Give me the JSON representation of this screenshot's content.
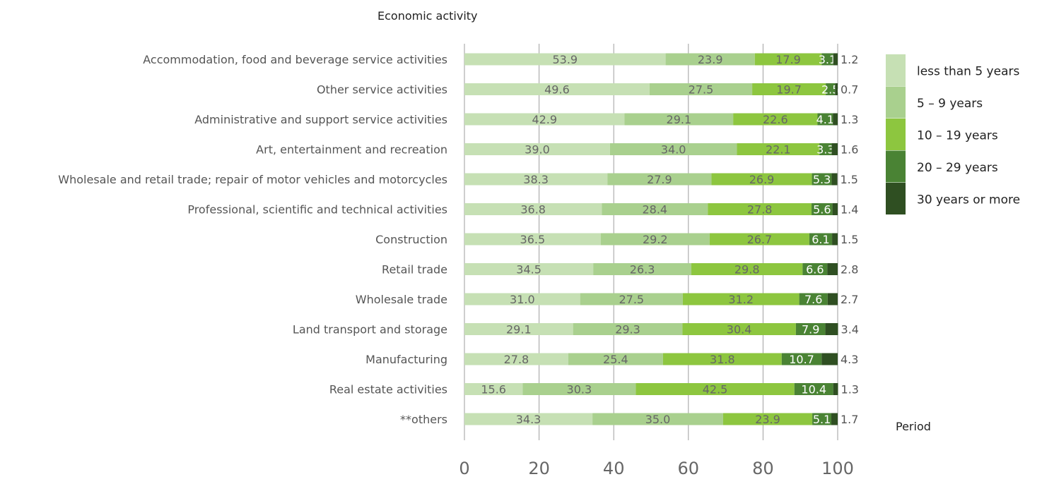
{
  "chart_data": {
    "type": "bar",
    "orientation": "horizontal",
    "stacked": true,
    "title": "Economic activity",
    "legend_title": "Period",
    "legend_position": "right",
    "xlim": [
      0,
      100
    ],
    "xticks": [
      0,
      20,
      40,
      60,
      80,
      100
    ],
    "grid": true,
    "categories": [
      "Accommodation, food and beverage service activities",
      "Other service activities",
      "Administrative and support service activities",
      "Art, entertainment and recreation",
      "Wholesale and retail trade; repair of motor vehicles and motorcycles",
      "Professional, scientific and technical activities",
      "Construction",
      "Retail trade",
      "Wholesale trade",
      "Land transport and storage",
      "Manufacturing",
      "Real estate activities",
      "**others"
    ],
    "series": [
      {
        "name": "less than 5 years",
        "color": "#c6e0b4",
        "values": [
          53.9,
          49.6,
          42.9,
          39.0,
          38.3,
          36.8,
          36.5,
          34.5,
          31.0,
          29.1,
          27.8,
          15.6,
          34.3
        ],
        "labels": [
          "53.9",
          "49.6",
          "42.9",
          "39.0",
          "38.3",
          "36.8",
          "36.5",
          "34.5",
          "31.0",
          "29.1",
          "27.8",
          "15.6",
          "34.3"
        ]
      },
      {
        "name": "5 – 9 years",
        "color": "#a9d08e",
        "values": [
          23.9,
          27.5,
          29.1,
          34.0,
          27.9,
          28.4,
          29.2,
          26.3,
          27.5,
          29.3,
          25.4,
          30.3,
          35.0
        ],
        "labels": [
          "23.9",
          "27.5",
          "29.1",
          "34.0",
          "27.9",
          "28.4",
          "29.2",
          "26.3",
          "27.5",
          "29.3",
          "25.4",
          "30.3",
          "35.0"
        ]
      },
      {
        "name": "10 – 19 years",
        "color": "#8dc63f",
        "values": [
          17.9,
          19.7,
          22.6,
          22.1,
          26.9,
          27.8,
          26.7,
          29.8,
          31.2,
          30.4,
          31.8,
          42.5,
          23.9
        ],
        "labels": [
          "17.9",
          "19.7",
          "22.6",
          "22.1",
          "26.9",
          "27.8",
          "26.7",
          "29.8",
          "31.2",
          "30.4",
          "31.8",
          "42.5",
          "23.9"
        ]
      },
      {
        "name": "20 – 29 years",
        "color": "#4a8334",
        "values": [
          3.1,
          2.5,
          4.1,
          3.3,
          5.3,
          5.6,
          6.1,
          6.6,
          7.6,
          7.9,
          10.7,
          10.4,
          5.1
        ],
        "labels": [
          "3.1",
          "2.5",
          "4.1",
          "3.3",
          "5.3",
          "5.6",
          "6.1",
          "6.6",
          "7.6",
          "7.9",
          "10.7",
          "10.4",
          "5.1"
        ]
      },
      {
        "name": "30 years or more",
        "color": "#2f4f22",
        "values": [
          1.2,
          0.7,
          1.3,
          1.6,
          1.5,
          1.4,
          1.5,
          2.8,
          2.7,
          3.4,
          4.3,
          1.3,
          1.7
        ],
        "labels": [
          "1.2",
          "0.7",
          "1.3",
          "1.6",
          "1.5",
          "1.4",
          "1.5",
          "2.8",
          "2.7",
          "3.4",
          "4.3",
          "1.3",
          "1.7"
        ]
      }
    ]
  }
}
